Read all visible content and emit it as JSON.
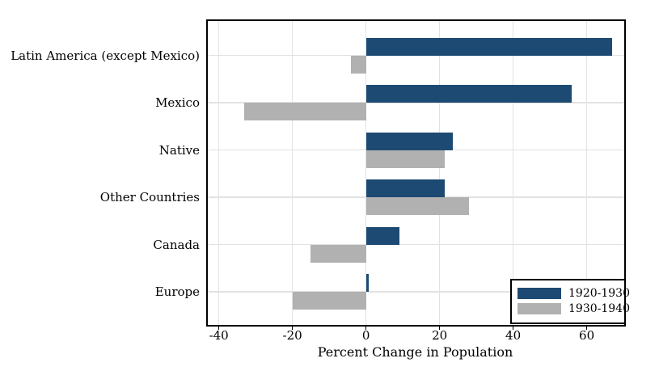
{
  "chart_data": {
    "type": "bar",
    "orientation": "horizontal",
    "title": "",
    "xlabel": "Percent Change in Population",
    "ylabel": "",
    "categories": [
      "Latin America (except Mexico)",
      "Mexico",
      "Native",
      "Other Countries",
      "Canada",
      "Europe"
    ],
    "series": [
      {
        "name": "1920-1930",
        "color": "#1d4a73",
        "values": [
          67,
          56,
          23.5,
          21.5,
          9,
          0.7
        ]
      },
      {
        "name": "1930-1940",
        "color": "#b1b1b1",
        "values": [
          -4,
          -33,
          21.5,
          28,
          -15,
          -20
        ]
      }
    ],
    "xlim": [
      -43,
      70.2
    ],
    "xticks": [
      -40,
      -20,
      0,
      20,
      40,
      60
    ],
    "xtick_labels": [
      "-40",
      "-20",
      "0",
      "20",
      "40",
      "60"
    ],
    "grid": true,
    "legend_position": "bottom-right",
    "style": {
      "grid_color": "#e2e2e2",
      "frame_color": "#000000",
      "text_color": "#000000",
      "background": "#ffffff"
    }
  }
}
